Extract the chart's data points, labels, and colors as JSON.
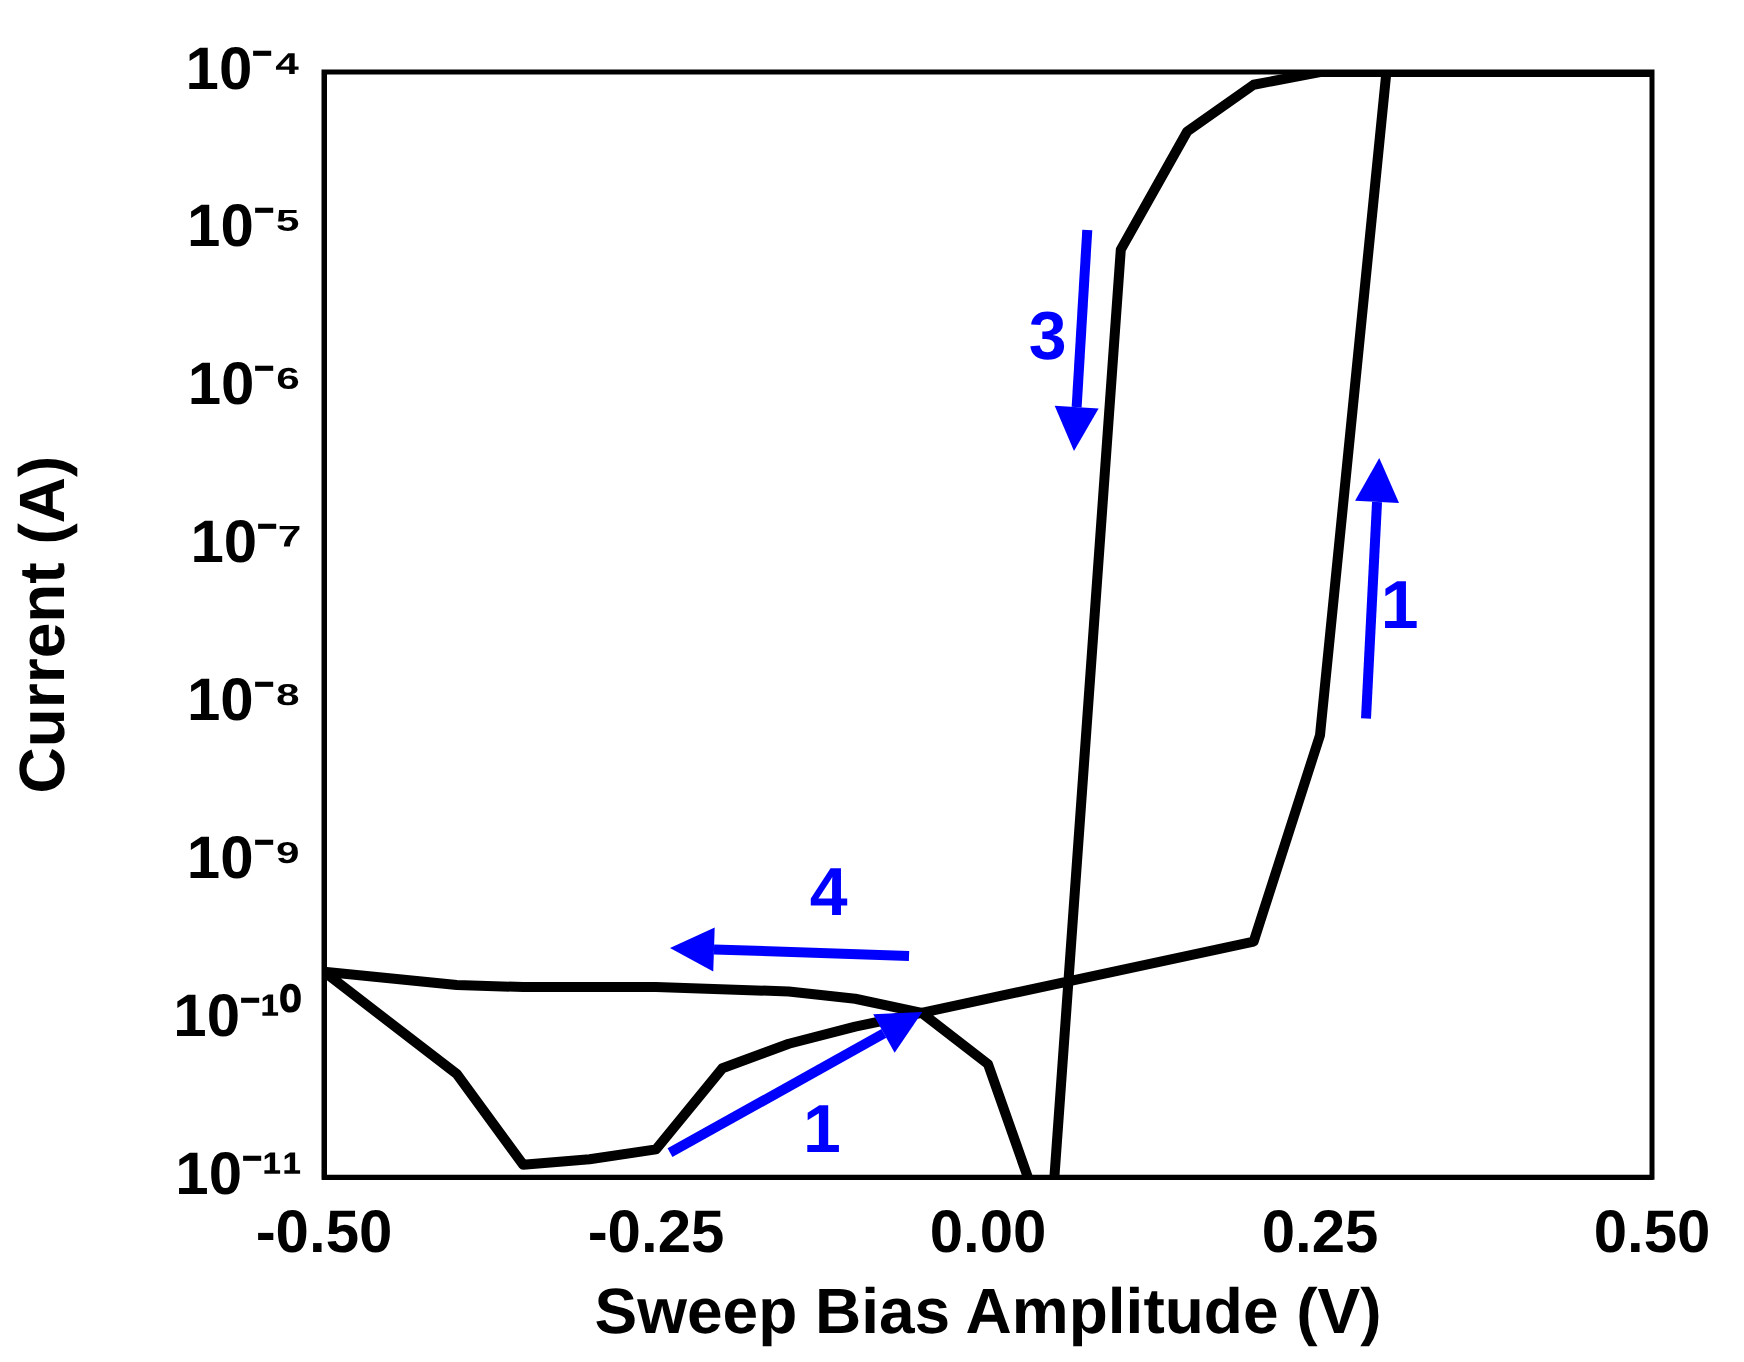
{
  "chart_data": {
    "type": "line",
    "xlabel": "Sweep Bias Amplitude (V)",
    "ylabel": "Current (A)",
    "log": "y",
    "xlim": [
      -0.5,
      0.5
    ],
    "xticks": [
      {
        "value": -0.5,
        "label": "-0.50"
      },
      {
        "value": -0.25,
        "label": "-0.25"
      },
      {
        "value": 0,
        "label": "0.00"
      },
      {
        "value": 0.25,
        "label": "0.25"
      },
      {
        "value": 0.5,
        "label": "0.50"
      }
    ],
    "ylim": [
      1e-11,
      0.0001
    ],
    "yticks": [
      {
        "value": 1e-11,
        "label": "10⁻¹¹"
      },
      {
        "value": 1e-10,
        "label": "10⁻¹⁰"
      },
      {
        "value": 1e-09,
        "label": "10⁻⁹"
      },
      {
        "value": 1e-08,
        "label": "10⁻⁸"
      },
      {
        "value": 1e-07,
        "label": "10⁻⁷"
      },
      {
        "value": 1e-06,
        "label": "10⁻⁶"
      },
      {
        "value": 1e-05,
        "label": "10⁻⁵"
      },
      {
        "value": 0.0001,
        "label": "10⁻⁴"
      }
    ],
    "marker": "none",
    "line_style": "solid",
    "series": [
      {
        "color": "#000000",
        "x": [
          -0.5,
          -0.4,
          -0.35,
          -0.3,
          -0.25,
          -0.2,
          -0.15,
          -0.1,
          -0.05,
          0.2,
          0.25,
          0.3,
          0.5,
          0.25,
          0.2,
          0.15,
          0.1,
          0.05,
          0.04,
          0.03,
          0,
          -0.05,
          -0.1,
          -0.15,
          -0.25,
          -0.35,
          -0.4,
          -0.5
        ],
        "values": [
          2e-10,
          4.5e-11,
          1.2e-11,
          1.3e-11,
          1.5e-11,
          4.9e-11,
          7e-11,
          9e-11,
          1.1e-10,
          3.1e-10,
          6.3e-09,
          0.0001,
          0.0001,
          0.0001,
          8.3e-05,
          4.2e-05,
          7.5e-06,
          1e-11,
          null,
          1e-11,
          5.2e-11,
          1.1e-10,
          1.35e-10,
          1.5e-10,
          1.6e-10,
          1.6e-10,
          1.65e-10,
          2e-10
        ]
      }
    ],
    "annotations": [
      {
        "text": "1",
        "x": -0.05,
        "y": 1.1e-10
      },
      "4",
      "3",
      "1"
    ]
  }
}
